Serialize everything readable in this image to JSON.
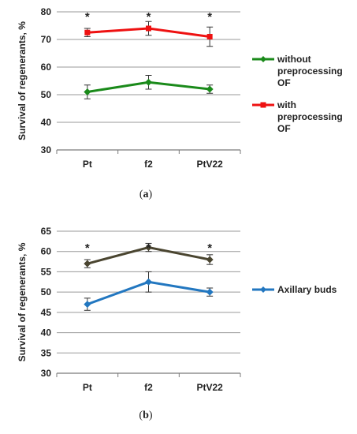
{
  "chart_data": [
    {
      "type": "line",
      "panel_caption": {
        "open": "(",
        "letter": "a",
        "close": ")"
      },
      "ylabel": "Survival of regenerants, %",
      "ylim": [
        30,
        80
      ],
      "yticks": [
        30,
        40,
        50,
        60,
        70,
        80
      ],
      "grid": true,
      "legend_position": "right",
      "categories": [
        "Pt",
        "f2",
        "PtV22"
      ],
      "series": [
        {
          "name_lines": [
            "without",
            "preprocessing",
            "OF"
          ],
          "color": "#1a8a1a",
          "marker": "diamond",
          "values": [
            51,
            54.5,
            52
          ],
          "errors": [
            2.5,
            2.5,
            1.5
          ]
        },
        {
          "name_lines": [
            "with",
            "preprocessing",
            "OF"
          ],
          "color": "#ee1111",
          "marker": "square",
          "values": [
            72.5,
            74,
            71
          ],
          "errors": [
            1.5,
            2.5,
            3.5
          ]
        }
      ],
      "annotations": [
        "*",
        "*",
        "*"
      ]
    },
    {
      "type": "line",
      "panel_caption": {
        "open": "(",
        "letter": "b",
        "close": ")"
      },
      "ylabel": "Survival of regenerants, %",
      "ylim": [
        30,
        65
      ],
      "yticks": [
        30,
        35,
        40,
        45,
        50,
        55,
        60,
        65
      ],
      "grid": true,
      "legend_position": "right",
      "categories": [
        "Pt",
        "f2",
        "PtV22"
      ],
      "series": [
        {
          "name_lines": [],
          "color": "#4a4530",
          "marker": "diamond",
          "values": [
            57,
            61,
            58
          ],
          "errors": [
            1,
            1,
            1.2
          ]
        },
        {
          "name_lines": [
            "Axillary buds"
          ],
          "color": "#2277c0",
          "marker": "diamond",
          "values": [
            47,
            52.5,
            50
          ],
          "errors": [
            1.5,
            2.5,
            1
          ]
        }
      ],
      "annotations": [
        "*",
        "*",
        "*"
      ]
    }
  ]
}
